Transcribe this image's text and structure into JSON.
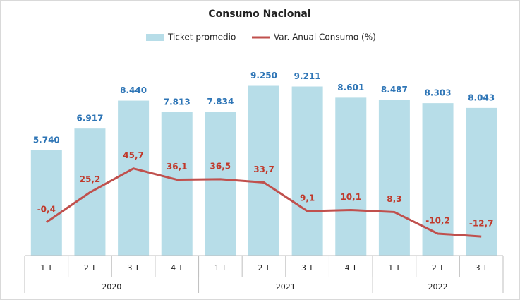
{
  "chart_data": {
    "type": "bar-line",
    "title": "Consumo Nacional",
    "categories": [
      "1 T",
      "2 T",
      "3 T",
      "4 T",
      "1 T",
      "2 T",
      "3 T",
      "4 T",
      "1 T",
      "2 T",
      "3 T"
    ],
    "groups": [
      {
        "label": "2020",
        "span": 4
      },
      {
        "label": "2021",
        "span": 4
      },
      {
        "label": "2022",
        "span": 3
      }
    ],
    "series": [
      {
        "name": "Ticket promedio",
        "type": "bar",
        "color": "#b7dde8",
        "label_color": "#2e75b6",
        "values": [
          5740,
          6917,
          8440,
          7813,
          7834,
          9250,
          9211,
          8601,
          8487,
          8303,
          8043
        ],
        "value_labels": [
          "5.740",
          "6.917",
          "8.440",
          "7.813",
          "7.834",
          "9.250",
          "9.211",
          "8.601",
          "8.487",
          "8.303",
          "8.043"
        ]
      },
      {
        "name": "Var. Anual Consumo (%)",
        "type": "line",
        "axis": "y2",
        "color": "#c0504d",
        "label_color": "#c0392b",
        "values": [
          -0.4,
          25.2,
          45.7,
          36.1,
          36.5,
          33.7,
          9.1,
          10.1,
          8.3,
          -10.2,
          -12.7
        ],
        "value_labels": [
          "-0,4",
          "25,2",
          "45,7",
          "36,1",
          "36,5",
          "33,7",
          "9,1",
          "10,1",
          "8,3",
          "-10,2",
          "-12,7"
        ]
      }
    ],
    "ylim": [
      0,
      12000
    ],
    "y2lim": [
      -29,
      160
    ]
  }
}
